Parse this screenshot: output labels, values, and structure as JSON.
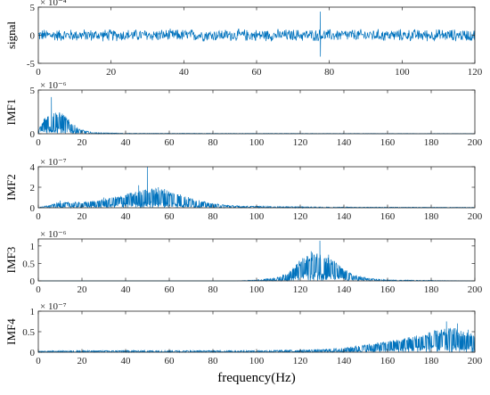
{
  "chart_data": [
    {
      "type": "line",
      "ylabel": "signal",
      "exponent": "× 10⁻⁴",
      "xlim": [
        0,
        120
      ],
      "ylim": [
        -5,
        5
      ],
      "xticks": [
        "0",
        "20",
        "40",
        "60",
        "80",
        "100",
        "120"
      ],
      "yticks": [
        "-5",
        "0",
        "5"
      ],
      "color": "#0072BD",
      "noise_amplitude": 1.2,
      "spikes": [
        {
          "x": 77.5,
          "y_max": 4.2,
          "y_min": -3.8
        }
      ]
    },
    {
      "type": "line",
      "ylabel": "IMF1",
      "exponent": "× 10⁻⁶",
      "xlim": [
        0,
        200
      ],
      "ylim": [
        0,
        5
      ],
      "xticks": [
        "0",
        "20",
        "40",
        "60",
        "80",
        "100",
        "120",
        "140",
        "160",
        "180",
        "200"
      ],
      "yticks": [
        "0",
        "5"
      ],
      "color": "#0072BD",
      "peaks": [
        {
          "x": 6,
          "y": 4.2
        },
        {
          "x": 11,
          "y": 2.3
        },
        {
          "x": 3,
          "y": 1.8
        }
      ],
      "envelope": [
        [
          0,
          0.3
        ],
        [
          3,
          1.5
        ],
        [
          6,
          2.0
        ],
        [
          9,
          1.9
        ],
        [
          12,
          1.6
        ],
        [
          15,
          1.0
        ],
        [
          19,
          0.4
        ],
        [
          25,
          0.1
        ],
        [
          40,
          0.04
        ],
        [
          200,
          0.02
        ]
      ]
    },
    {
      "type": "line",
      "ylabel": "IMF2",
      "exponent": "× 10⁻⁷",
      "xlim": [
        0,
        200
      ],
      "ylim": [
        0,
        4
      ],
      "xticks": [
        "0",
        "20",
        "40",
        "60",
        "80",
        "100",
        "120",
        "140",
        "160",
        "180",
        "200"
      ],
      "yticks": [
        "0",
        "2",
        "4"
      ],
      "color": "#0072BD",
      "peaks": [
        {
          "x": 50,
          "y": 4.0
        },
        {
          "x": 46,
          "y": 2.2
        },
        {
          "x": 55,
          "y": 2.0
        },
        {
          "x": 30,
          "y": 1.0
        },
        {
          "x": 10,
          "y": 0.7
        }
      ],
      "envelope": [
        [
          0,
          0.02
        ],
        [
          5,
          0.2
        ],
        [
          10,
          0.4
        ],
        [
          20,
          0.4
        ],
        [
          30,
          0.6
        ],
        [
          40,
          1.0
        ],
        [
          50,
          1.4
        ],
        [
          58,
          1.4
        ],
        [
          65,
          1.0
        ],
        [
          72,
          0.6
        ],
        [
          80,
          0.3
        ],
        [
          90,
          0.15
        ],
        [
          110,
          0.08
        ],
        [
          140,
          0.05
        ],
        [
          200,
          0.03
        ]
      ]
    },
    {
      "type": "line",
      "ylabel": "IMF3",
      "exponent": "× 10⁻⁶",
      "xlim": [
        0,
        200
      ],
      "ylim": [
        0,
        1.2
      ],
      "xticks": [
        "0",
        "20",
        "40",
        "60",
        "80",
        "100",
        "120",
        "140",
        "160",
        "180",
        "200"
      ],
      "yticks": [
        "0",
        "0.5",
        "1"
      ],
      "color": "#0072BD",
      "peaks": [
        {
          "x": 129,
          "y": 1.15
        },
        {
          "x": 125,
          "y": 0.85
        },
        {
          "x": 133,
          "y": 0.75
        }
      ],
      "envelope": [
        [
          0,
          0.0
        ],
        [
          90,
          0.0
        ],
        [
          100,
          0.02
        ],
        [
          110,
          0.08
        ],
        [
          115,
          0.2
        ],
        [
          120,
          0.45
        ],
        [
          125,
          0.6
        ],
        [
          130,
          0.6
        ],
        [
          135,
          0.45
        ],
        [
          140,
          0.25
        ],
        [
          145,
          0.12
        ],
        [
          152,
          0.05
        ],
        [
          160,
          0.02
        ],
        [
          200,
          0.0
        ]
      ]
    },
    {
      "type": "line",
      "ylabel": "IMF4",
      "exponent": "× 10⁻⁷",
      "xlabel": "frequency(Hz)",
      "xlim": [
        0,
        200
      ],
      "ylim": [
        0,
        1
      ],
      "xticks": [
        "0",
        "20",
        "40",
        "60",
        "80",
        "100",
        "120",
        "140",
        "160",
        "180",
        "200"
      ],
      "yticks": [
        "0",
        "0.5",
        "1"
      ],
      "color": "#0072BD",
      "peaks": [
        {
          "x": 187,
          "y": 0.75
        },
        {
          "x": 192,
          "y": 0.7
        },
        {
          "x": 197,
          "y": 0.55
        }
      ],
      "envelope": [
        [
          0,
          0.02
        ],
        [
          20,
          0.03
        ],
        [
          100,
          0.03
        ],
        [
          130,
          0.05
        ],
        [
          140,
          0.08
        ],
        [
          150,
          0.14
        ],
        [
          160,
          0.2
        ],
        [
          170,
          0.28
        ],
        [
          180,
          0.38
        ],
        [
          190,
          0.45
        ],
        [
          200,
          0.32
        ]
      ]
    }
  ]
}
